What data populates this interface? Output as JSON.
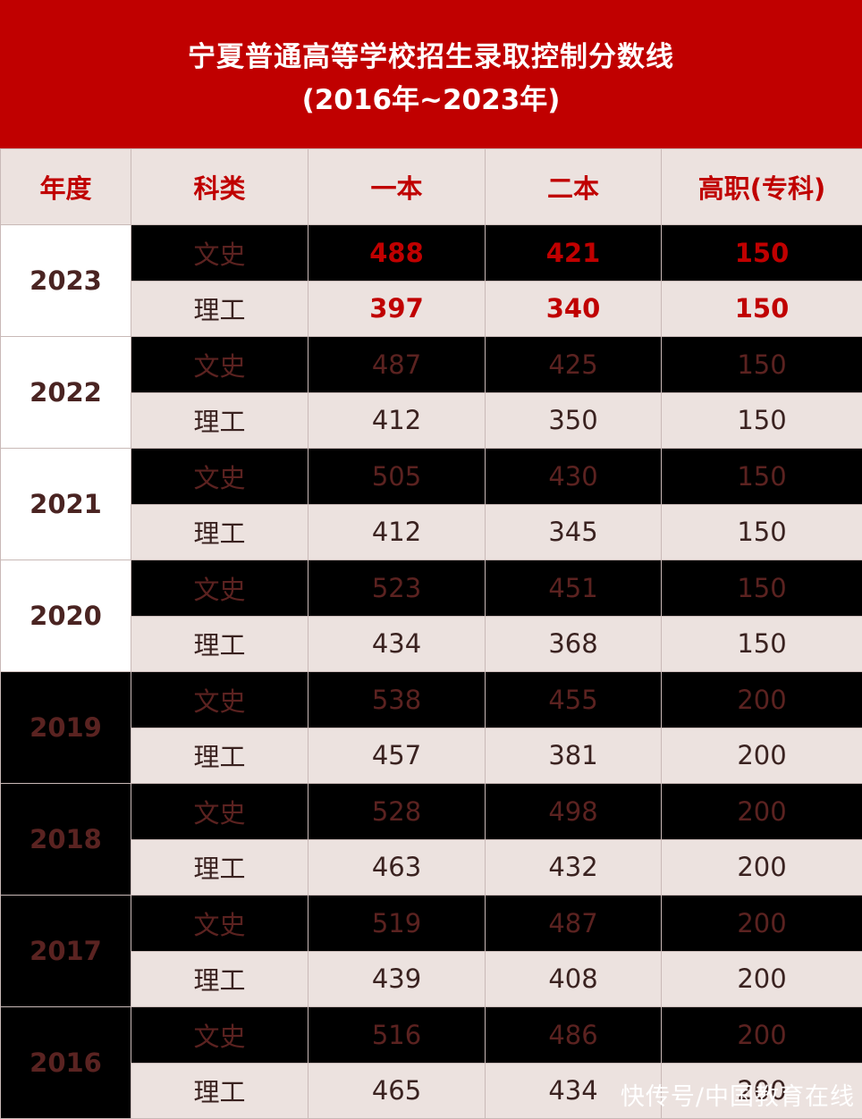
{
  "title": {
    "line1": "宁夏普通高等学校招生录取控制分数线",
    "line2": "(2016年~2023年)"
  },
  "columns": [
    "年度",
    "科类",
    "一本",
    "二本",
    "高职(专科)"
  ],
  "rows": [
    {
      "year": "2023",
      "entries": [
        {
          "subject": "文史",
          "tier1": "488",
          "tier2": "421",
          "vocational": "150"
        },
        {
          "subject": "理工",
          "tier1": "397",
          "tier2": "340",
          "vocational": "150"
        }
      ]
    },
    {
      "year": "2022",
      "entries": [
        {
          "subject": "文史",
          "tier1": "487",
          "tier2": "425",
          "vocational": "150"
        },
        {
          "subject": "理工",
          "tier1": "412",
          "tier2": "350",
          "vocational": "150"
        }
      ]
    },
    {
      "year": "2021",
      "entries": [
        {
          "subject": "文史",
          "tier1": "505",
          "tier2": "430",
          "vocational": "150"
        },
        {
          "subject": "理工",
          "tier1": "412",
          "tier2": "345",
          "vocational": "150"
        }
      ]
    },
    {
      "year": "2020",
      "entries": [
        {
          "subject": "文史",
          "tier1": "523",
          "tier2": "451",
          "vocational": "150"
        },
        {
          "subject": "理工",
          "tier1": "434",
          "tier2": "368",
          "vocational": "150"
        }
      ]
    },
    {
      "year": "2019",
      "entries": [
        {
          "subject": "文史",
          "tier1": "538",
          "tier2": "455",
          "vocational": "200"
        },
        {
          "subject": "理工",
          "tier1": "457",
          "tier2": "381",
          "vocational": "200"
        }
      ]
    },
    {
      "year": "2018",
      "entries": [
        {
          "subject": "文史",
          "tier1": "528",
          "tier2": "498",
          "vocational": "200"
        },
        {
          "subject": "理工",
          "tier1": "463",
          "tier2": "432",
          "vocational": "200"
        }
      ]
    },
    {
      "year": "2017",
      "entries": [
        {
          "subject": "文史",
          "tier1": "519",
          "tier2": "487",
          "vocational": "200"
        },
        {
          "subject": "理工",
          "tier1": "439",
          "tier2": "408",
          "vocational": "200"
        }
      ]
    },
    {
      "year": "2016",
      "entries": [
        {
          "subject": "文史",
          "tier1": "516",
          "tier2": "486",
          "vocational": "200"
        },
        {
          "subject": "理工",
          "tier1": "465",
          "tier2": "434",
          "vocational": "200"
        }
      ]
    }
  ],
  "watermark": "快传号/中国教育在线",
  "colors": {
    "brand_red": "#c00000",
    "header_bg": "#ece2df",
    "dark_row_bg": "#000000",
    "dark_row_text": "#5b2220"
  }
}
